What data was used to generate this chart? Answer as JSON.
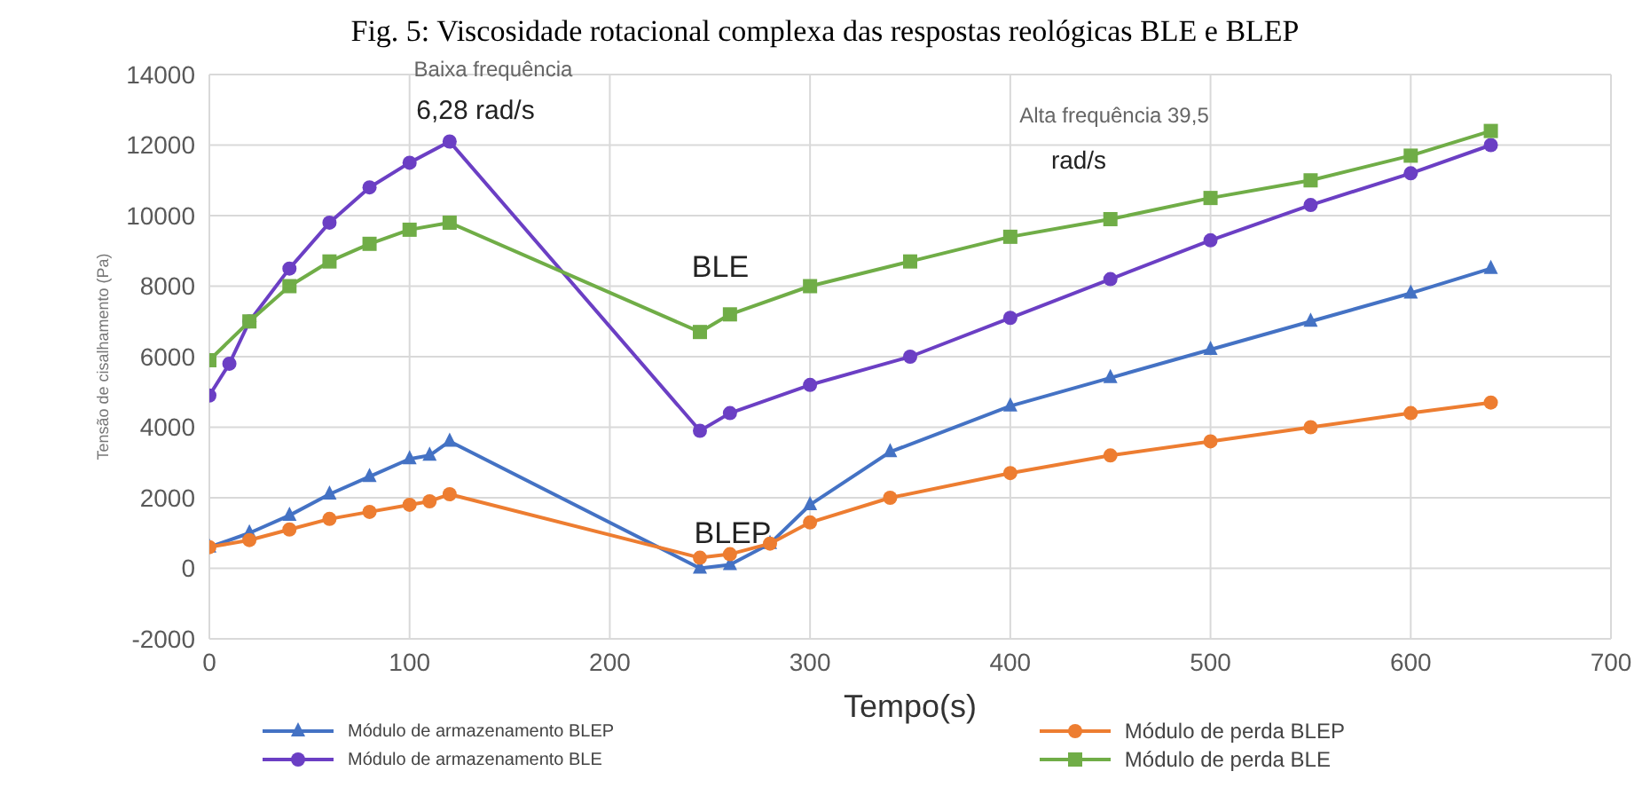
{
  "chart_data": {
    "type": "line",
    "title": "Fig. 5: Viscosidade rotacional complexa das respostas reológicas BLE e BLEP",
    "xlabel": "Tempo(s)",
    "ylabel": "Tensão de cisalhamento (Pa)",
    "xlim": [
      0,
      700
    ],
    "xticks": [
      0,
      100,
      200,
      300,
      400,
      500,
      600,
      700
    ],
    "ylim": [
      -2000,
      14000
    ],
    "yticks": [
      -2000,
      0,
      2000,
      4000,
      6000,
      8000,
      10000,
      12000,
      14000
    ],
    "grid": true,
    "legend": "bottom",
    "annotations": [
      "Baixa frequência",
      "6,28 rad/s",
      "Alta frequência 39,5",
      "rad/s",
      "BLE",
      "BLEP"
    ],
    "series": [
      {
        "name": "Módulo de armazenamento BLEP",
        "color": "#4472c4",
        "marker": "triangle",
        "x": [
          0,
          20,
          40,
          60,
          80,
          100,
          110,
          120,
          245,
          260,
          280,
          300,
          340,
          400,
          450,
          500,
          550,
          600,
          640
        ],
        "values": [
          600,
          1000,
          1500,
          2100,
          2600,
          3100,
          3200,
          3600,
          0,
          100,
          700,
          1800,
          3300,
          4600,
          5400,
          6200,
          7000,
          7800,
          8500
        ]
      },
      {
        "name": "Módulo de armazenamento BLE",
        "color": "#6b3fc4",
        "marker": "circle",
        "x": [
          0,
          10,
          20,
          40,
          60,
          80,
          100,
          120,
          245,
          260,
          300,
          350,
          400,
          450,
          500,
          550,
          600,
          640
        ],
        "values": [
          4900,
          5800,
          7000,
          8500,
          9800,
          10800,
          11500,
          12100,
          3900,
          4400,
          5200,
          6000,
          7100,
          8200,
          9300,
          10300,
          11200,
          12000
        ]
      },
      {
        "name": "Módulo de perda BLEP",
        "color": "#ed7d31",
        "marker": "circle",
        "x": [
          0,
          20,
          40,
          60,
          80,
          100,
          110,
          120,
          245,
          260,
          280,
          300,
          340,
          400,
          450,
          500,
          550,
          600,
          640
        ],
        "values": [
          600,
          800,
          1100,
          1400,
          1600,
          1800,
          1900,
          2100,
          300,
          400,
          700,
          1300,
          2000,
          2700,
          3200,
          3600,
          4000,
          4400,
          4700
        ]
      },
      {
        "name": "Módulo de perda BLE",
        "color": "#70ad47",
        "marker": "square",
        "x": [
          0,
          20,
          40,
          60,
          80,
          100,
          120,
          245,
          260,
          300,
          350,
          400,
          450,
          500,
          550,
          600,
          640
        ],
        "values": [
          5900,
          7000,
          8000,
          8700,
          9200,
          9600,
          9800,
          6700,
          7200,
          8000,
          8700,
          9400,
          9900,
          10500,
          11000,
          11700,
          12400
        ]
      }
    ]
  }
}
